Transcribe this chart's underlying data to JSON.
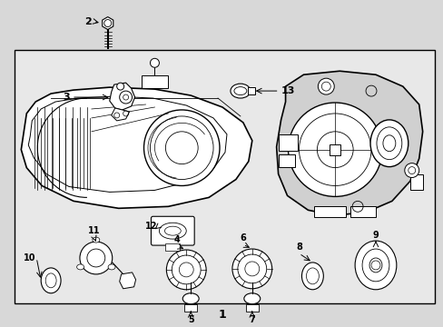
{
  "background_color": "#d8d8d8",
  "box_color": "#e8e8e8",
  "line_color": "#000000",
  "figsize": [
    4.89,
    3.6
  ],
  "dpi": 100
}
